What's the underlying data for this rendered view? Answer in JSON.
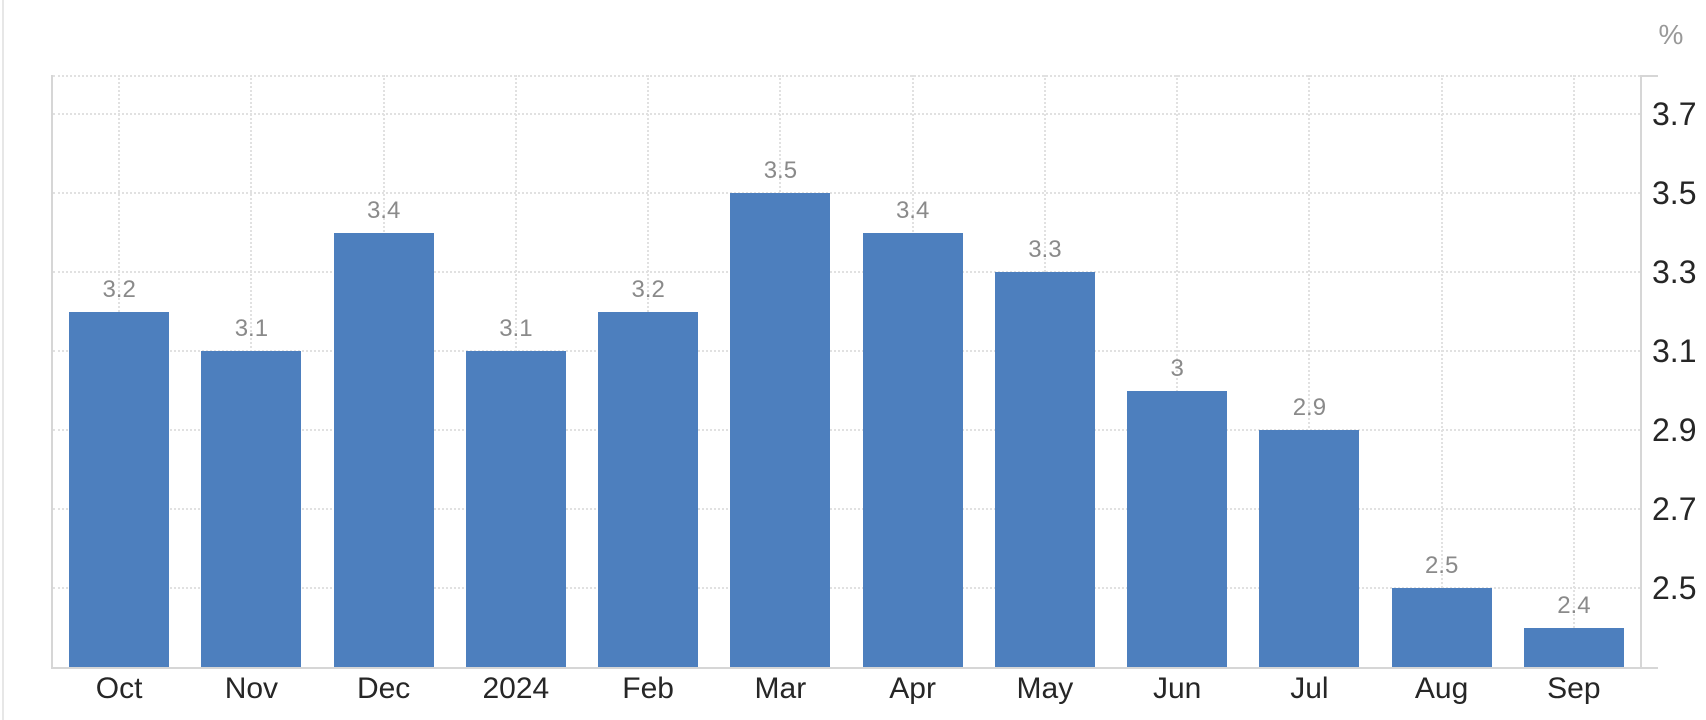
{
  "unit_label": "%",
  "chart_data": {
    "type": "bar",
    "title": "",
    "xlabel": "",
    "ylabel": "%",
    "unit": "%",
    "categories": [
      "Oct",
      "Nov",
      "Dec",
      "2024",
      "Feb",
      "Mar",
      "Apr",
      "May",
      "Jun",
      "Jul",
      "Aug",
      "Sep"
    ],
    "values": [
      3.2,
      3.1,
      3.4,
      3.1,
      3.2,
      3.5,
      3.4,
      3.3,
      3.0,
      2.9,
      2.5,
      2.4
    ],
    "data_labels": [
      "3.2",
      "3.1",
      "3.4",
      "3.1",
      "3.2",
      "3.5",
      "3.4",
      "3.3",
      "3",
      "2.9",
      "2.5",
      "2.4"
    ],
    "ylim": [
      2.3,
      3.8
    ],
    "yticks": [
      3.7,
      3.5,
      3.3,
      3.1,
      2.9,
      2.7,
      2.5
    ],
    "ytick_labels": [
      "3.7",
      "3.5",
      "3.3",
      "3.1",
      "2.9",
      "2.7",
      "2.5"
    ],
    "grid": "dotted, horizontal at each y tick plus top border, vertical at each category center",
    "legend": "none",
    "colors": {
      "bar": "#4d7fbe",
      "grid": "#e1e1e1",
      "axis": "#d6d6d6",
      "data_label": "#8a8a8a",
      "tick_label": "#262626",
      "unit_label": "#999999"
    }
  }
}
